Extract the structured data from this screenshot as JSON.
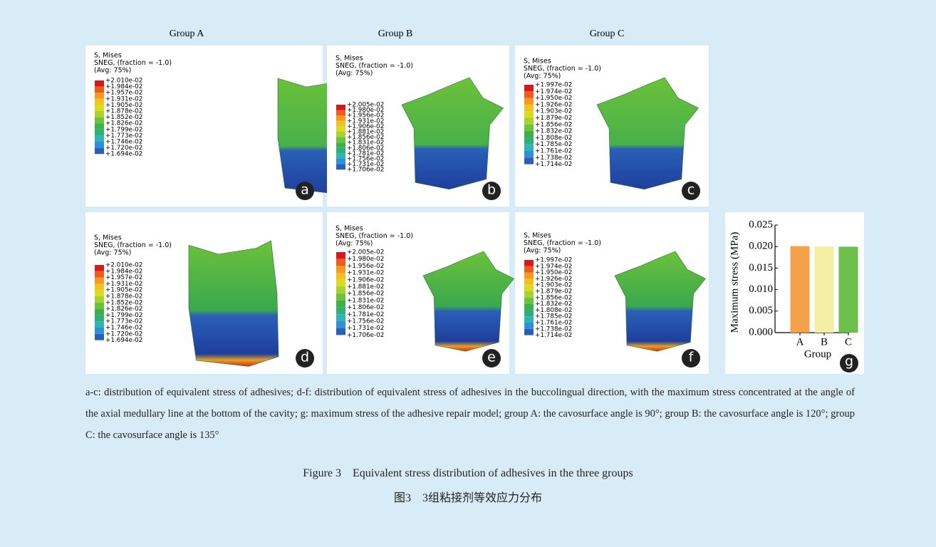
{
  "group_labels": [
    "Group A",
    "Group B",
    "Group C"
  ],
  "panels": [
    {
      "letter": "a",
      "header": [
        "S, Mises",
        "SNEG, (fraction = -1.0)",
        "(Avg: 75%)"
      ],
      "legend": [
        "+2.010e-02",
        "+1.984e-02",
        "+1.957e-02",
        "+1.931e-02",
        "+1.905e-02",
        "+1.878e-02",
        "+1.852e-02",
        "+1.826e-02",
        "+1.799e-02",
        "+1.773e-02",
        "+1.746e-02",
        "+1.720e-02",
        "+1.694e-02"
      ]
    },
    {
      "letter": "b",
      "header": [
        "S, Mises",
        "SNEG, (fraction = -1.0)",
        "(Avg: 75%)"
      ],
      "legend": [
        "+2.005e-02",
        "+1.980e-02",
        "+1.956e-02",
        "+1.931e-02",
        "+1.906e-02",
        "+1.881e-02",
        "+1.856e-02",
        "+1.831e-02",
        "+1.806e-02",
        "+1.781e-02",
        "+1.756e-02",
        "+1.731e-02",
        "+1.706e-02"
      ]
    },
    {
      "letter": "c",
      "header": [
        "S, Mises",
        "SNEG, (fraction = -1.0)",
        "(Avg: 75%)"
      ],
      "legend": [
        "+1.997e-02",
        "+1.974e-02",
        "+1.950e-02",
        "+1.926e-02",
        "+1.903e-02",
        "+1.879e-02",
        "+1.856e-02",
        "+1.832e-02",
        "+1.808e-02",
        "+1.785e-02",
        "+1.761e-02",
        "+1.738e-02",
        "+1.714e-02"
      ]
    },
    {
      "letter": "d",
      "header": [
        "S, Mises",
        "SNEG, (fraction = -1.0)",
        "(Avg: 75%)"
      ],
      "legend": [
        "+2.010e-02",
        "+1.984e-02",
        "+1.957e-02",
        "+1.931e-02",
        "+1.905e-02",
        "+1.878e-02",
        "+1.852e-02",
        "+1.826e-02",
        "+1.799e-02",
        "+1.773e-02",
        "+1.746e-02",
        "+1.720e-02",
        "+1.694e-02"
      ]
    },
    {
      "letter": "e",
      "header": [
        "S, Mises",
        "SNEG, (fraction = -1.0)",
        "(Avg: 75%)"
      ],
      "legend": [
        "+2.005e-02",
        "+1.980e-02",
        "+1.956e-02",
        "+1.931e-02",
        "+1.906e-02",
        "+1.881e-02",
        "+1.856e-02",
        "+1.831e-02",
        "+1.806e-02",
        "+1.781e-02",
        "+1.756e-02",
        "+1.731e-02",
        "+1.706e-02"
      ]
    },
    {
      "letter": "f",
      "header": [
        "S, Mises",
        "SNEG, (fraction = -1.0)",
        "(Avg: 75%)"
      ],
      "legend": [
        "+1.997e-02",
        "+1.974e-02",
        "+1.950e-02",
        "+1.926e-02",
        "+1.903e-02",
        "+1.879e-02",
        "+1.856e-02",
        "+1.832e-02",
        "+1.808e-02",
        "+1.785e-02",
        "+1.761e-02",
        "+1.738e-02",
        "+1.714e-02"
      ]
    }
  ],
  "chart_data": {
    "type": "bar",
    "letter": "g",
    "y_label": "Maximum stress (MPa)",
    "x_label": "Group",
    "categories": [
      "A",
      "B",
      "C"
    ],
    "values": [
      0.0201,
      0.02005,
      0.01997
    ],
    "colors": [
      "#f5a04a",
      "#f3eea2",
      "#6dbf4b"
    ],
    "ylim": [
      0,
      0.025
    ],
    "yticks": [
      {
        "value": 0,
        "label": "0.000"
      },
      {
        "value": 0.005,
        "label": "0.005"
      },
      {
        "value": 0.01,
        "label": "0.010"
      },
      {
        "value": 0.015,
        "label": "0.015"
      },
      {
        "value": 0.02,
        "label": "0.020"
      },
      {
        "value": 0.025,
        "label": "0.025"
      }
    ]
  },
  "caption": "a-c: distribution of equivalent stress of adhesives; d-f: distribution of equivalent stress of adhesives in the buccolingual direction, with the maximum stress concentrated at the angle of the axial medullary line at the bottom of the cavity; g: maximum stress of the adhesive repair model; group A: the cavosurface angle is 90°; group B: the cavosurface angle is 120°; group C: the cavosurface angle is 135°",
  "figure_title_en": "Figure 3    Equivalent stress distribution of adhesives in the three groups",
  "figure_title_zh": "图3    3组粘接剂等效应力分布"
}
